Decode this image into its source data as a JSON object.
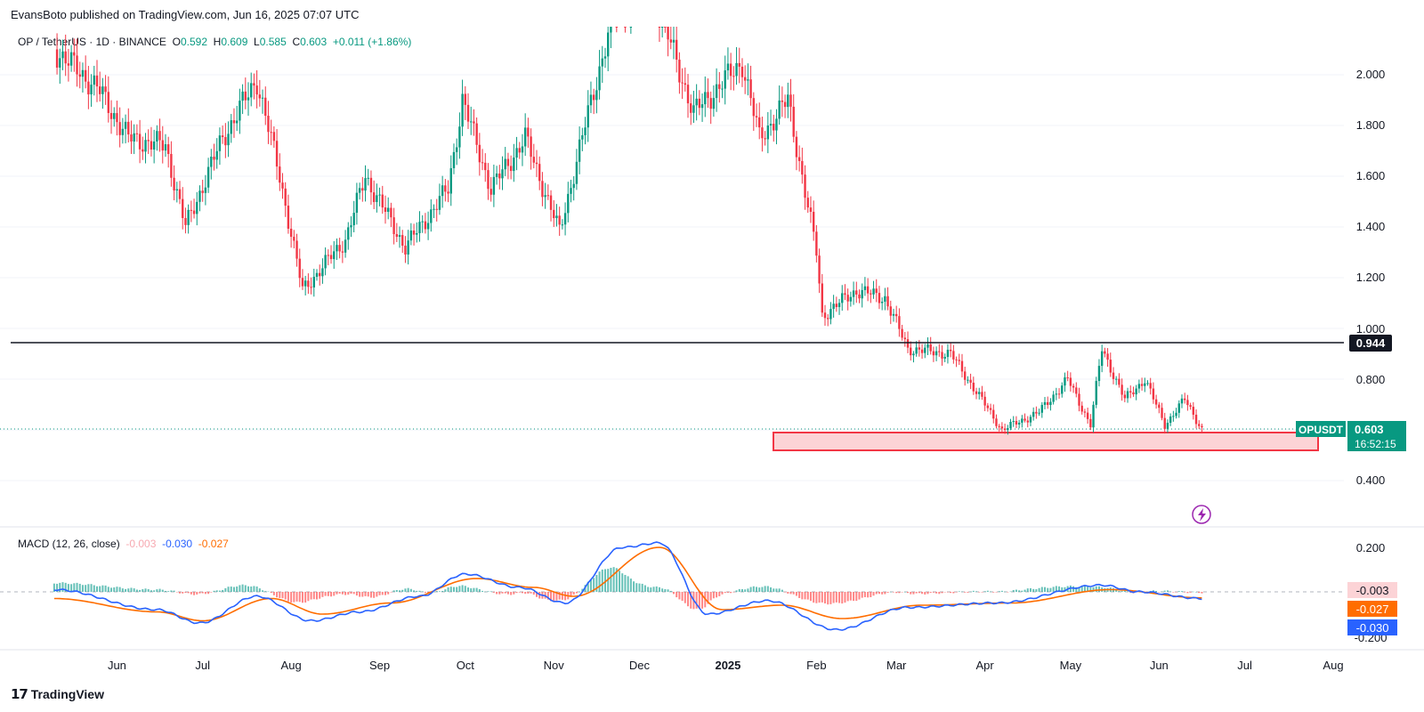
{
  "header": {
    "published": "EvansBoto published on TradingView.com, Jun 16, 2025 07:07 UTC"
  },
  "legend": {
    "symbol": "OP / TetherUS · 1D · BINANCE",
    "o_key": "O",
    "o_val": "0.592",
    "h_key": "H",
    "h_val": "0.609",
    "l_key": "L",
    "l_val": "0.585",
    "c_key": "C",
    "c_val": "0.603",
    "change": "+0.011 (+1.86%)"
  },
  "macd_legend": {
    "label": "MACD (12, 26, close)",
    "hist": "-0.003",
    "macd": "-0.030",
    "signal": "-0.027"
  },
  "price_axis": {
    "ticks": [
      "2.000",
      "1.800",
      "1.600",
      "1.400",
      "1.200",
      "1.000",
      "0.800",
      "0.400"
    ],
    "resistance_label": "0.944",
    "symbol_tag": "OPUSDT",
    "last_price": "0.603",
    "countdown": "16:52:15"
  },
  "macd_axis": {
    "ticks": [
      "0.200",
      "-0.200"
    ],
    "hist_tag": "-0.003",
    "signal_tag": "-0.027",
    "macd_tag": "-0.030"
  },
  "time_axis": [
    "Jun",
    "Jul",
    "Aug",
    "Sep",
    "Oct",
    "Nov",
    "Dec",
    "2025",
    "Feb",
    "Mar",
    "Apr",
    "May",
    "Jun",
    "Jul",
    "Aug"
  ],
  "brand": "TradingView",
  "colors": {
    "up": "#089981",
    "down": "#f23645",
    "macd": "#2962ff",
    "signal": "#ff6d00",
    "resistance": "#131722",
    "zone_fill": "#fcd3d6",
    "zone_border": "#f23645"
  },
  "chart_data": [
    {
      "type": "candlestick",
      "symbol": "OPUSDT",
      "interval": "1D",
      "ylim": [
        0.25,
        2.2
      ],
      "resistance_line": 0.944,
      "support_zone": [
        0.535,
        0.605
      ],
      "last_price": 0.603,
      "close_path": [
        {
          "t": "2024-05-10",
          "c": 2.1
        },
        {
          "t": "2024-05-25",
          "c": 1.95
        },
        {
          "t": "2024-06-05",
          "c": 1.75
        },
        {
          "t": "2024-06-18",
          "c": 1.72
        },
        {
          "t": "2024-06-25",
          "c": 1.4
        },
        {
          "t": "2024-07-08",
          "c": 1.75
        },
        {
          "t": "2024-07-20",
          "c": 1.98
        },
        {
          "t": "2024-07-28",
          "c": 1.6
        },
        {
          "t": "2024-08-05",
          "c": 1.15
        },
        {
          "t": "2024-08-20",
          "c": 1.35
        },
        {
          "t": "2024-08-27",
          "c": 1.6
        },
        {
          "t": "2024-09-10",
          "c": 1.32
        },
        {
          "t": "2024-09-25",
          "c": 1.55
        },
        {
          "t": "2024-09-30",
          "c": 1.9
        },
        {
          "t": "2024-10-10",
          "c": 1.55
        },
        {
          "t": "2024-10-22",
          "c": 1.75
        },
        {
          "t": "2024-11-03",
          "c": 1.38
        },
        {
          "t": "2024-11-12",
          "c": 1.8
        },
        {
          "t": "2024-11-22",
          "c": 2.25
        },
        {
          "t": "2024-12-05",
          "c": 2.35
        },
        {
          "t": "2024-12-20",
          "c": 1.85
        },
        {
          "t": "2025-01-06",
          "c": 2.05
        },
        {
          "t": "2025-01-12",
          "c": 1.75
        },
        {
          "t": "2025-01-22",
          "c": 1.9
        },
        {
          "t": "2025-02-01",
          "c": 1.3
        },
        {
          "t": "2025-02-03",
          "c": 1.05
        },
        {
          "t": "2025-02-15",
          "c": 1.15
        },
        {
          "t": "2025-02-25",
          "c": 1.12
        },
        {
          "t": "2025-03-05",
          "c": 0.92
        },
        {
          "t": "2025-03-20",
          "c": 0.9
        },
        {
          "t": "2025-04-07",
          "c": 0.6
        },
        {
          "t": "2025-04-20",
          "c": 0.67
        },
        {
          "t": "2025-04-30",
          "c": 0.8
        },
        {
          "t": "2025-05-08",
          "c": 0.62
        },
        {
          "t": "2025-05-12",
          "c": 0.92
        },
        {
          "t": "2025-05-20",
          "c": 0.72
        },
        {
          "t": "2025-05-27",
          "c": 0.8
        },
        {
          "t": "2025-06-03",
          "c": 0.62
        },
        {
          "t": "2025-06-10",
          "c": 0.72
        },
        {
          "t": "2025-06-16",
          "c": 0.603
        }
      ]
    },
    {
      "type": "macd",
      "params": "12, 26, close",
      "ylim": [
        -0.27,
        0.26
      ],
      "macd": [
        {
          "t": "2024-05-10",
          "v": 0.01
        },
        {
          "t": "2024-06-15",
          "v": -0.08
        },
        {
          "t": "2024-06-30",
          "v": -0.14
        },
        {
          "t": "2024-07-20",
          "v": -0.02
        },
        {
          "t": "2024-08-08",
          "v": -0.13
        },
        {
          "t": "2024-08-25",
          "v": -0.09
        },
        {
          "t": "2024-09-15",
          "v": -0.02
        },
        {
          "t": "2024-10-01",
          "v": 0.08
        },
        {
          "t": "2024-10-20",
          "v": 0.02
        },
        {
          "t": "2024-11-05",
          "v": -0.05
        },
        {
          "t": "2024-11-25",
          "v": 0.2
        },
        {
          "t": "2024-12-08",
          "v": 0.22
        },
        {
          "t": "2024-12-25",
          "v": -0.1
        },
        {
          "t": "2025-01-15",
          "v": -0.04
        },
        {
          "t": "2025-02-08",
          "v": -0.17
        },
        {
          "t": "2025-03-05",
          "v": -0.07
        },
        {
          "t": "2025-04-05",
          "v": -0.05
        },
        {
          "t": "2025-05-12",
          "v": 0.03
        },
        {
          "t": "2025-05-25",
          "v": 0.0
        },
        {
          "t": "2025-06-16",
          "v": -0.03
        }
      ],
      "signal": [
        {
          "t": "2024-05-10",
          "v": -0.03
        },
        {
          "t": "2024-06-15",
          "v": -0.09
        },
        {
          "t": "2024-07-01",
          "v": -0.13
        },
        {
          "t": "2024-07-25",
          "v": -0.03
        },
        {
          "t": "2024-08-12",
          "v": -0.1
        },
        {
          "t": "2024-09-05",
          "v": -0.05
        },
        {
          "t": "2024-10-05",
          "v": 0.06
        },
        {
          "t": "2024-10-25",
          "v": 0.02
        },
        {
          "t": "2024-11-08",
          "v": -0.02
        },
        {
          "t": "2024-12-08",
          "v": 0.2
        },
        {
          "t": "2024-12-30",
          "v": -0.08
        },
        {
          "t": "2025-01-20",
          "v": -0.06
        },
        {
          "t": "2025-02-10",
          "v": -0.12
        },
        {
          "t": "2025-03-10",
          "v": -0.06
        },
        {
          "t": "2025-04-10",
          "v": -0.05
        },
        {
          "t": "2025-05-15",
          "v": 0.01
        },
        {
          "t": "2025-06-16",
          "v": -0.027
        }
      ],
      "histogram_latest": -0.003
    }
  ]
}
